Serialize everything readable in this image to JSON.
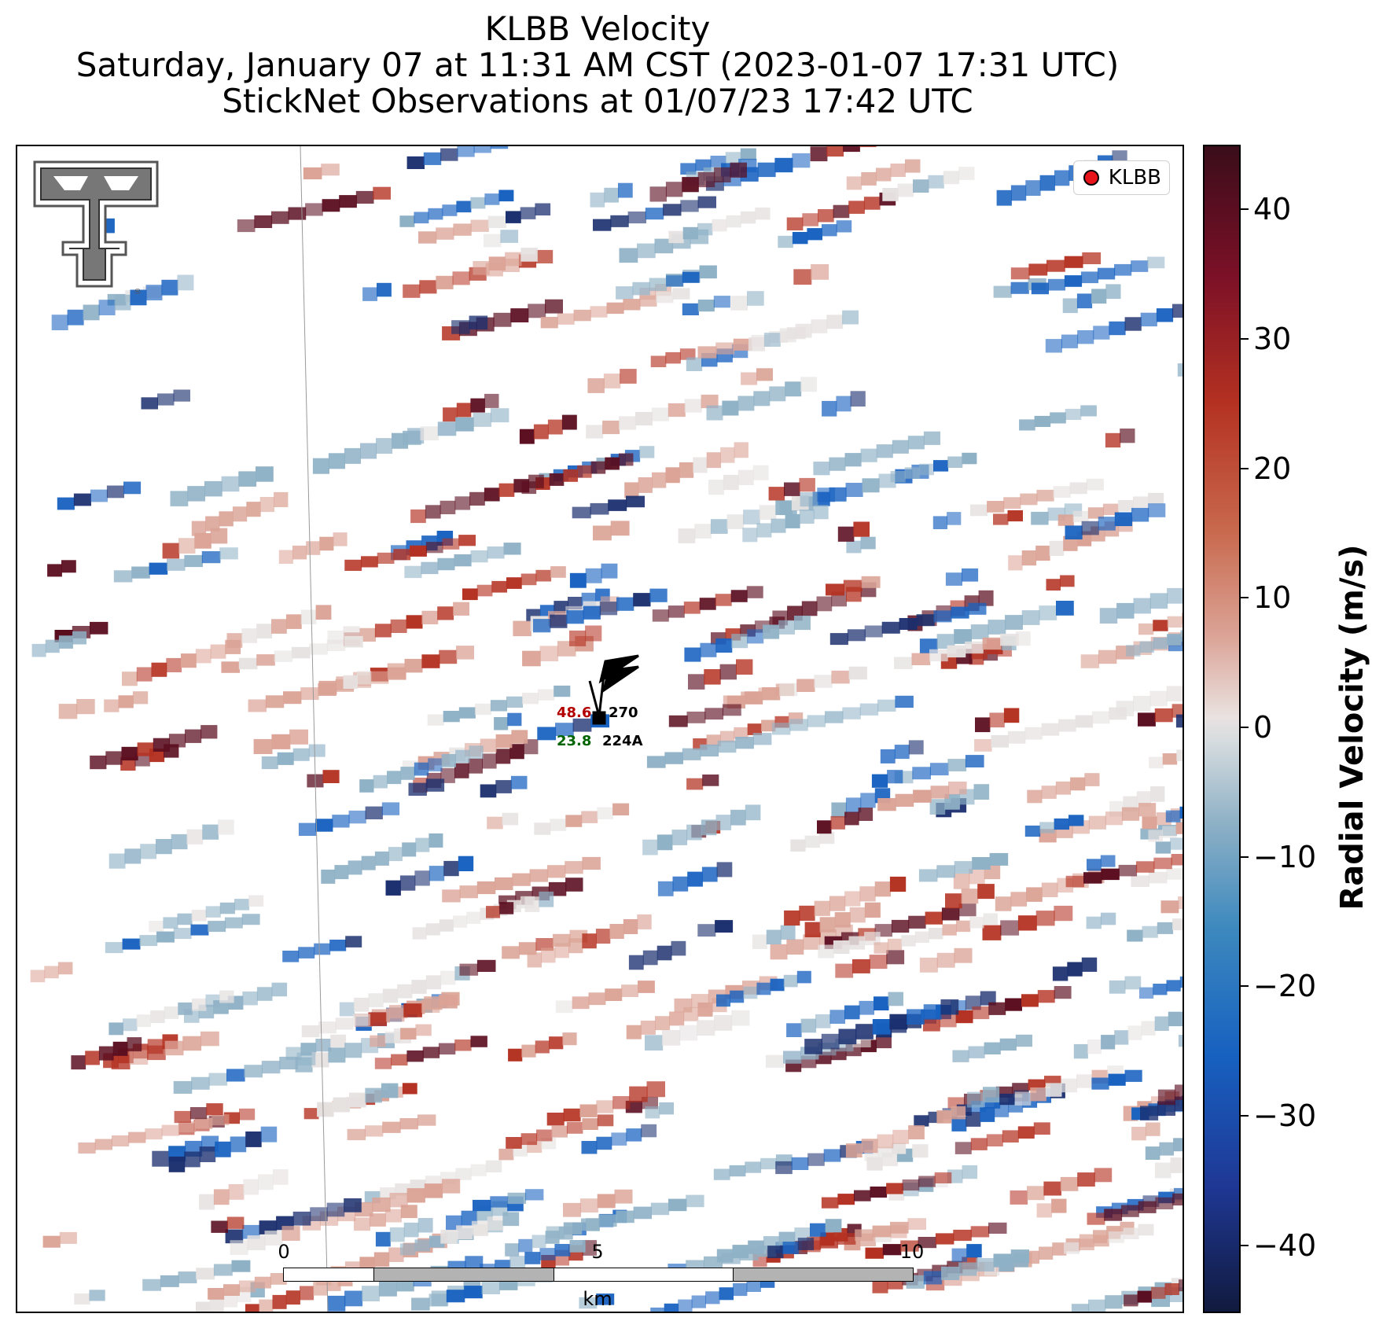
{
  "title": {
    "line1": "KLBB Velocity",
    "line2": "Saturday, January 07 at 11:31 AM CST (2023-01-07 17:31 UTC)",
    "line3": "StickNet Observations at 01/07/23 17:42 UTC"
  },
  "legend": {
    "label": "KLBB",
    "marker_color": "#e8141c"
  },
  "logo": {
    "name": "Texas Tech Double T"
  },
  "station": {
    "id": "224A",
    "temperature": "48.6",
    "dewpoint": "23.8",
    "pressure": "270",
    "temperature_color": "#b30000",
    "dewpoint_color": "#006400"
  },
  "scale_bar": {
    "labels": [
      "0",
      "5",
      "10"
    ],
    "unit": "km"
  },
  "colorbar": {
    "title": "Radial Velocity (m/s)",
    "ticks": [
      "40",
      "30",
      "20",
      "10",
      "0",
      "−10",
      "−20",
      "−30",
      "−40"
    ],
    "range": [
      -45,
      45
    ],
    "colors": {
      "strong_inbound": "#1a2e6e",
      "inbound": "#1761c0",
      "weak_inbound": "#8fb1c6",
      "near_zero": "#e6e2e1",
      "weak_outbound": "#dba396",
      "outbound": "#b43121",
      "strong_outbound": "#5a0d1f"
    }
  }
}
